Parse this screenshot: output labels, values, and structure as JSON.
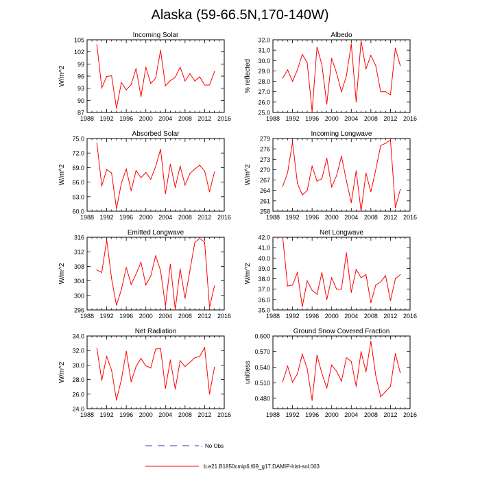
{
  "figure": {
    "title": "Alaska (59-66.5N,170-140W)"
  },
  "legend": {
    "obs_label": "No Obs",
    "model_label": "b.e21.B1850cmip6.f09_g17.DAMIP-hist-sol.003",
    "obs_color": "#3333cc",
    "model_color": "#ff0000"
  },
  "chart_data": [
    {
      "type": "line",
      "title": "Incoming Solar",
      "ylabel": "W/m^2",
      "xlim": [
        1988,
        2016
      ],
      "xticks": [
        "1988",
        "1992",
        "1996",
        "2000",
        "2004",
        "2008",
        "2012",
        "2016"
      ],
      "ylim": [
        87,
        105
      ],
      "yticks": [
        "87",
        "90",
        "93",
        "96",
        "99",
        "102",
        "105"
      ],
      "series": [
        {
          "x": [
            1990,
            1991,
            1992,
            1993,
            1994,
            1995,
            1996,
            1997,
            1998,
            1999,
            2000,
            2001,
            2002,
            2003,
            2004,
            2005,
            2006,
            2007,
            2008,
            2009,
            2010,
            2011,
            2012,
            2013,
            2014
          ],
          "values": [
            103.8,
            93.1,
            95.9,
            96.1,
            88.0,
            94.4,
            92.6,
            93.9,
            97.9,
            90.9,
            98.2,
            94.2,
            95.5,
            102.4,
            93.6,
            94.9,
            95.7,
            98.2,
            94.8,
            96.6,
            94.8,
            95.8,
            93.8,
            93.8,
            97.1
          ]
        }
      ]
    },
    {
      "type": "line",
      "title": "Albedo",
      "ylabel": "% reflected",
      "xlim": [
        1988,
        2016
      ],
      "xticks": [
        "1988",
        "1992",
        "1996",
        "2000",
        "2004",
        "2008",
        "2012",
        "2016"
      ],
      "ylim": [
        25.0,
        32.0
      ],
      "yticks": [
        "25.0",
        "26.0",
        "27.0",
        "28.0",
        "29.0",
        "30.0",
        "31.0",
        "32.0"
      ],
      "series": [
        {
          "x": [
            1990,
            1991,
            1992,
            1993,
            1994,
            1995,
            1996,
            1997,
            1998,
            1999,
            2000,
            2001,
            2002,
            2003,
            2004,
            2005,
            2006,
            2007,
            2008,
            2009,
            2010,
            2011,
            2012,
            2013,
            2014
          ],
          "values": [
            28.3,
            29.1,
            28.0,
            29.1,
            30.6,
            29.8,
            25.1,
            31.3,
            29.6,
            25.8,
            30.2,
            28.8,
            27.0,
            28.5,
            31.6,
            26.0,
            31.9,
            29.2,
            30.5,
            29.5,
            27.0,
            27.0,
            26.7,
            31.2,
            29.5
          ]
        }
      ]
    },
    {
      "type": "line",
      "title": "Absorbed Solar",
      "ylabel": "W/m^2",
      "xlim": [
        1988,
        2016
      ],
      "xticks": [
        "1988",
        "1992",
        "1996",
        "2000",
        "2004",
        "2008",
        "2012",
        "2016"
      ],
      "ylim": [
        60.0,
        75.0
      ],
      "yticks": [
        "60.0",
        "63.0",
        "66.0",
        "69.0",
        "72.0",
        "75.0"
      ],
      "series": [
        {
          "x": [
            1990,
            1991,
            1992,
            1993,
            1994,
            1995,
            1996,
            1997,
            1998,
            1999,
            2000,
            2001,
            2002,
            2003,
            2004,
            2005,
            2006,
            2007,
            2008,
            2009,
            2010,
            2011,
            2012,
            2013,
            2014
          ],
          "values": [
            74.1,
            65.2,
            68.6,
            67.9,
            60.5,
            65.8,
            68.7,
            64.2,
            68.4,
            66.9,
            68.0,
            66.6,
            69.2,
            72.8,
            63.6,
            69.7,
            64.9,
            69.3,
            65.4,
            67.8,
            68.7,
            69.5,
            68.3,
            64.0,
            68.1
          ]
        }
      ]
    },
    {
      "type": "line",
      "title": "Incoming Longwave",
      "ylabel": "W/m^2",
      "xlim": [
        1988,
        2016
      ],
      "xticks": [
        "1988",
        "1992",
        "1996",
        "2000",
        "2004",
        "2008",
        "2012",
        "2016"
      ],
      "ylim": [
        258,
        279
      ],
      "yticks": [
        "258",
        "261",
        "264",
        "267",
        "270",
        "273",
        "276",
        "279"
      ],
      "series": [
        {
          "x": [
            1990,
            1991,
            1992,
            1993,
            1994,
            1995,
            1996,
            1997,
            1998,
            1999,
            2000,
            2001,
            2002,
            2003,
            2004,
            2005,
            2006,
            2007,
            2008,
            2009,
            2010,
            2011,
            2012,
            2013,
            2014
          ],
          "values": [
            265.2,
            269.1,
            278.0,
            266.1,
            262.7,
            264.0,
            271.0,
            266.7,
            267.4,
            273.3,
            265.0,
            268.3,
            273.9,
            266.8,
            260.5,
            269.7,
            258.0,
            269.0,
            263.6,
            270.0,
            277.0,
            277.6,
            278.6,
            259.0,
            264.3
          ]
        }
      ]
    },
    {
      "type": "line",
      "title": "Emitted Longwave",
      "ylabel": "W/m^2",
      "xlim": [
        1988,
        2016
      ],
      "xticks": [
        "1988",
        "1992",
        "1996",
        "2000",
        "2004",
        "2008",
        "2012",
        "2016"
      ],
      "ylim": [
        296,
        316
      ],
      "yticks": [
        "296",
        "300",
        "304",
        "308",
        "312",
        "316"
      ],
      "series": [
        {
          "x": [
            1990,
            1991,
            1992,
            1993,
            1994,
            1995,
            1996,
            1997,
            1998,
            1999,
            2000,
            2001,
            2002,
            2003,
            2004,
            2005,
            2006,
            2007,
            2008,
            2009,
            2010,
            2011,
            2012,
            2013,
            2014
          ],
          "values": [
            307.0,
            306.3,
            315.3,
            304.6,
            297.3,
            301.6,
            307.7,
            303.0,
            305.9,
            309.1,
            302.9,
            305.3,
            310.9,
            306.8,
            297.1,
            308.6,
            296.1,
            307.3,
            299.2,
            306.9,
            314.6,
            315.7,
            314.6,
            296.7,
            302.6
          ]
        }
      ]
    },
    {
      "type": "line",
      "title": "Net Longwave",
      "ylabel": "W/m^2",
      "xlim": [
        1988,
        2016
      ],
      "xticks": [
        "1988",
        "1992",
        "1996",
        "2000",
        "2004",
        "2008",
        "2012",
        "2016"
      ],
      "ylim": [
        35.0,
        42.0
      ],
      "yticks": [
        "35.0",
        "36.0",
        "37.0",
        "38.0",
        "39.0",
        "40.0",
        "41.0",
        "42.0"
      ],
      "series": [
        {
          "x": [
            1990,
            1991,
            1992,
            1993,
            1994,
            1995,
            1996,
            1997,
            1998,
            1999,
            2000,
            2001,
            2002,
            2003,
            2004,
            2005,
            2006,
            2007,
            2008,
            2009,
            2010,
            2011,
            2012,
            2013,
            2014
          ],
          "values": [
            42.0,
            37.3,
            37.4,
            38.6,
            35.3,
            37.8,
            36.9,
            36.5,
            38.6,
            36.0,
            38.1,
            37.0,
            37.0,
            40.5,
            36.7,
            38.9,
            38.1,
            38.4,
            35.7,
            37.4,
            37.7,
            38.3,
            35.9,
            38.0,
            38.4
          ]
        }
      ]
    },
    {
      "type": "line",
      "title": "Net Radiation",
      "ylabel": "W/m^2",
      "xlim": [
        1988,
        2016
      ],
      "xticks": [
        "1988",
        "1992",
        "1996",
        "2000",
        "2004",
        "2008",
        "2012",
        "2016"
      ],
      "ylim": [
        24.0,
        34.0
      ],
      "yticks": [
        "24.0",
        "26.0",
        "28.0",
        "30.0",
        "32.0",
        "34.0"
      ],
      "series": [
        {
          "x": [
            1990,
            1991,
            1992,
            1993,
            1994,
            1995,
            1996,
            1997,
            1998,
            1999,
            2000,
            2001,
            2002,
            2003,
            2004,
            2005,
            2006,
            2007,
            2008,
            2009,
            2010,
            2011,
            2012,
            2013,
            2014
          ],
          "values": [
            32.3,
            27.9,
            31.2,
            29.3,
            25.2,
            28.0,
            31.9,
            27.7,
            29.8,
            30.9,
            29.9,
            29.6,
            32.2,
            32.3,
            26.8,
            30.7,
            26.7,
            30.6,
            29.8,
            30.4,
            31.0,
            31.2,
            32.4,
            26.0,
            29.7
          ]
        }
      ]
    },
    {
      "type": "line",
      "title": "Ground Snow Covered Fraction",
      "ylabel": "unitless",
      "xlim": [
        1988,
        2016
      ],
      "xticks": [
        "1988",
        "1992",
        "1996",
        "2000",
        "2004",
        "2008",
        "2012",
        "2016"
      ],
      "ylim": [
        0.46,
        0.6
      ],
      "yticks": [
        "0.480",
        "0.510",
        "0.540",
        "0.570",
        "0.600"
      ],
      "ytick_values": [
        0.48,
        0.51,
        0.54,
        0.57,
        0.6
      ],
      "series": [
        {
          "x": [
            1990,
            1991,
            1992,
            1993,
            1994,
            1995,
            1996,
            1997,
            1998,
            1999,
            2000,
            2001,
            2002,
            2003,
            2004,
            2005,
            2006,
            2007,
            2008,
            2009,
            2010,
            2011,
            2012,
            2013,
            2014
          ],
          "values": [
            0.512,
            0.542,
            0.511,
            0.527,
            0.565,
            0.537,
            0.476,
            0.563,
            0.528,
            0.5,
            0.544,
            0.532,
            0.513,
            0.558,
            0.551,
            0.503,
            0.57,
            0.531,
            0.59,
            0.524,
            0.483,
            0.493,
            0.503,
            0.566,
            0.529
          ]
        }
      ]
    }
  ]
}
